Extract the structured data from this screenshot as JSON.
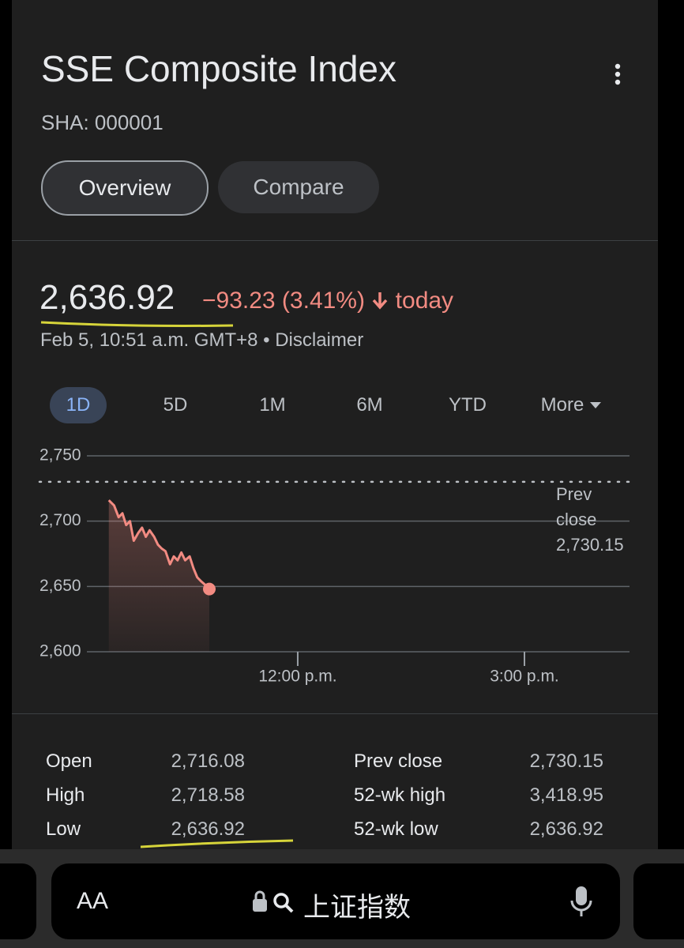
{
  "header": {
    "title": "SSE Composite Index",
    "symbol": "SHA: 000001",
    "tabs": [
      "Overview",
      "Compare"
    ]
  },
  "quote": {
    "price": "2,636.92",
    "change": "−93.23 (3.41%)",
    "period": "today",
    "timestamp": "Feb 5, 10:51 a.m. GMT+8 • Disclaimer"
  },
  "ranges": [
    "1D",
    "5D",
    "1M",
    "6M",
    "YTD",
    "More"
  ],
  "chart_data": {
    "type": "line",
    "x": [
      9.5,
      9.57,
      9.63,
      9.68,
      9.73,
      9.78,
      9.83,
      9.89,
      9.94,
      9.99,
      10.04,
      10.1,
      10.15,
      10.2,
      10.25,
      10.31,
      10.36,
      10.41,
      10.46,
      10.51,
      10.57,
      10.62,
      10.67,
      10.72,
      10.78,
      10.83
    ],
    "values": [
      2716,
      2712,
      2703,
      2706,
      2697,
      2700,
      2685,
      2691,
      2695,
      2688,
      2693,
      2688,
      2682,
      2679,
      2677,
      2667,
      2673,
      2670,
      2676,
      2670,
      2673,
      2664,
      2657,
      2654,
      2651,
      2648
    ],
    "color": "#f28b82",
    "xlim": [
      9.21,
      16.39
    ],
    "xticks": [
      {
        "value": 12,
        "label": "12:00 p.m."
      },
      {
        "value": 15,
        "label": "3:00 p.m."
      }
    ],
    "ylim": [
      2600,
      2750
    ],
    "yticks": [
      {
        "value": 2600,
        "label": "2,600"
      },
      {
        "value": 2650,
        "label": "2,650"
      },
      {
        "value": 2700,
        "label": "2,700"
      },
      {
        "value": 2750,
        "label": "2,750"
      }
    ],
    "grid": true,
    "prev_close": {
      "title": "Prev close",
      "value": 2730.15,
      "label": "2,730.15"
    }
  },
  "stats": {
    "left": [
      [
        "Open",
        "2,716.08"
      ],
      [
        "High",
        "2,718.58"
      ],
      [
        "Low",
        "2,636.92"
      ]
    ],
    "right": [
      [
        "Prev close",
        "2,730.15"
      ],
      [
        "52-wk high",
        "3,418.95"
      ],
      [
        "52-wk low",
        "2,636.92"
      ]
    ]
  },
  "browser": {
    "text_size": "AA",
    "query": "上证指数"
  }
}
